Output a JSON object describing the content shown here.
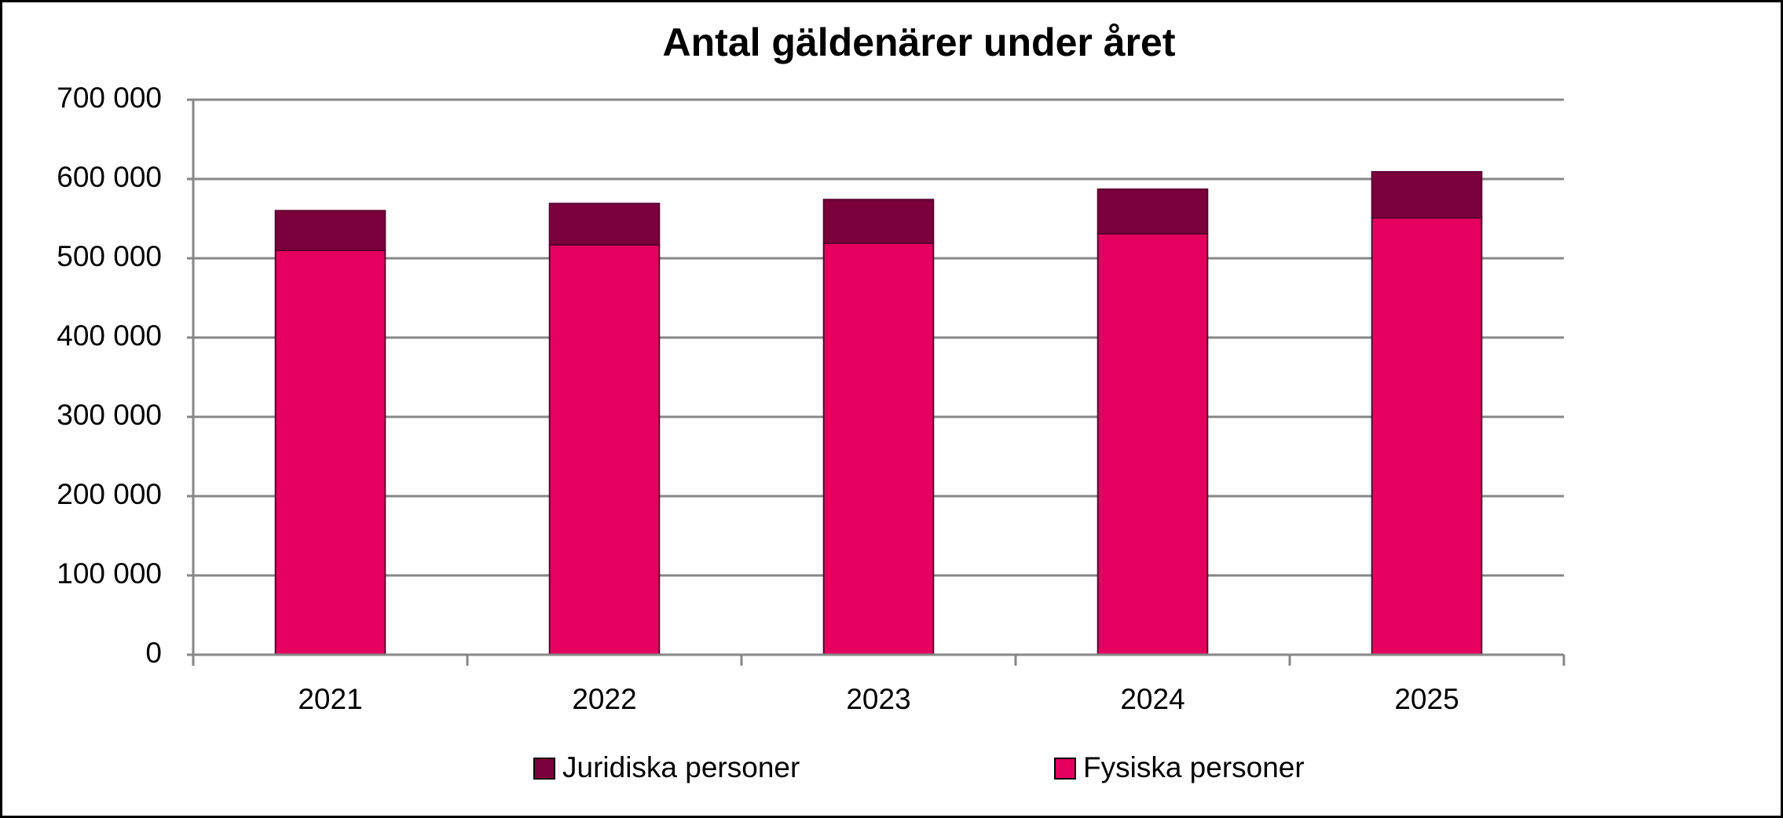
{
  "chart_data": {
    "type": "stacked_bar",
    "title": "Antal gäldenärer under året",
    "categories": [
      "2021",
      "2022",
      "2023",
      "2024",
      "2025"
    ],
    "series": [
      {
        "name": "Juridiska personer",
        "color": "#7b003c",
        "values": [
          50000,
          52000,
          55000,
          56000,
          58000
        ]
      },
      {
        "name": "Fysiska personer",
        "color": "#e5005f",
        "values": [
          510000,
          517000,
          519000,
          531000,
          551000
        ]
      }
    ],
    "ylim": [
      0,
      700000
    ],
    "yticks": [
      0,
      {
        "value": 100000,
        "label": "100 000"
      },
      {
        "value": 200000,
        "label": "200 000"
      },
      {
        "value": 300000,
        "label": "300 000"
      },
      {
        "value": 400000,
        "label": "400 000"
      },
      {
        "value": 500000,
        "label": "500 000"
      },
      {
        "value": 600000,
        "label": "600 000"
      },
      {
        "value": 700000,
        "label": "700 000"
      }
    ],
    "grid": true
  }
}
